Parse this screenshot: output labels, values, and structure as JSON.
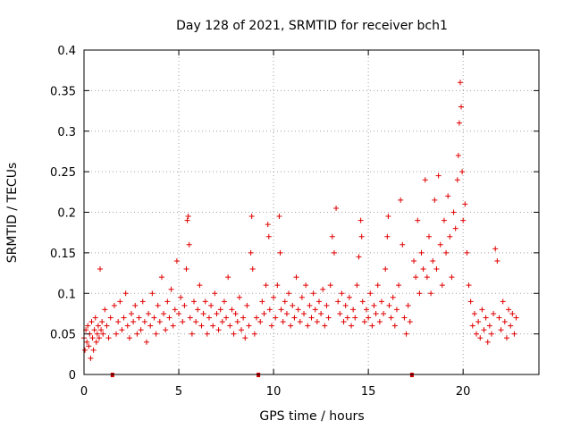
{
  "chart_data": {
    "type": "scatter",
    "title": "Day 128 of 2021, SRMTID for receiver bch1",
    "xlabel": "GPS time / hours",
    "ylabel": "SRMTID / TECUs",
    "xlim": [
      0,
      24
    ],
    "ylim": [
      0,
      0.4
    ],
    "xticks": [
      0,
      5,
      10,
      15,
      20
    ],
    "xtick_labels": [
      "0",
      "5",
      "10",
      "15",
      "20"
    ],
    "yticks": [
      0,
      0.05,
      0.1,
      0.15,
      0.2,
      0.25,
      0.3,
      0.35,
      0.4
    ],
    "ytick_labels": [
      "0",
      "0.05",
      "0.1",
      "0.15",
      "0.2",
      "0.25",
      "0.3",
      "0.35",
      "0.4"
    ],
    "grid": true,
    "marker": "+",
    "color": "#e00000",
    "gap_markers_x": [
      1.5,
      9.2,
      17.3
    ],
    "series": [
      {
        "name": "SRMTID",
        "points": [
          [
            0.0,
            0.045
          ],
          [
            0.05,
            0.03
          ],
          [
            0.1,
            0.055
          ],
          [
            0.15,
            0.04
          ],
          [
            0.2,
            0.06
          ],
          [
            0.25,
            0.035
          ],
          [
            0.3,
            0.05
          ],
          [
            0.35,
            0.02
          ],
          [
            0.4,
            0.065
          ],
          [
            0.45,
            0.045
          ],
          [
            0.5,
            0.03
          ],
          [
            0.55,
            0.055
          ],
          [
            0.6,
            0.07
          ],
          [
            0.65,
            0.04
          ],
          [
            0.7,
            0.05
          ],
          [
            0.75,
            0.06
          ],
          [
            0.8,
            0.045
          ],
          [
            0.85,
            0.13
          ],
          [
            0.9,
            0.055
          ],
          [
            0.95,
            0.065
          ],
          [
            1.0,
            0.05
          ],
          [
            1.1,
            0.08
          ],
          [
            1.2,
            0.06
          ],
          [
            1.3,
            0.045
          ],
          [
            1.4,
            0.07
          ],
          [
            1.6,
            0.085
          ],
          [
            1.7,
            0.05
          ],
          [
            1.8,
            0.065
          ],
          [
            1.9,
            0.09
          ],
          [
            2.0,
            0.055
          ],
          [
            2.1,
            0.07
          ],
          [
            2.2,
            0.1
          ],
          [
            2.3,
            0.06
          ],
          [
            2.4,
            0.045
          ],
          [
            2.5,
            0.075
          ],
          [
            2.6,
            0.065
          ],
          [
            2.7,
            0.085
          ],
          [
            2.8,
            0.05
          ],
          [
            2.9,
            0.07
          ],
          [
            3.0,
            0.055
          ],
          [
            3.1,
            0.09
          ],
          [
            3.2,
            0.065
          ],
          [
            3.3,
            0.04
          ],
          [
            3.4,
            0.075
          ],
          [
            3.5,
            0.06
          ],
          [
            3.6,
            0.1
          ],
          [
            3.7,
            0.07
          ],
          [
            3.8,
            0.05
          ],
          [
            3.9,
            0.085
          ],
          [
            4.0,
            0.065
          ],
          [
            4.1,
            0.12
          ],
          [
            4.2,
            0.075
          ],
          [
            4.3,
            0.055
          ],
          [
            4.4,
            0.09
          ],
          [
            4.5,
            0.07
          ],
          [
            4.6,
            0.105
          ],
          [
            4.7,
            0.06
          ],
          [
            4.8,
            0.08
          ],
          [
            4.9,
            0.14
          ],
          [
            5.0,
            0.075
          ],
          [
            5.1,
            0.095
          ],
          [
            5.2,
            0.065
          ],
          [
            5.3,
            0.085
          ],
          [
            5.4,
            0.13
          ],
          [
            5.45,
            0.19
          ],
          [
            5.5,
            0.195
          ],
          [
            5.55,
            0.16
          ],
          [
            5.6,
            0.07
          ],
          [
            5.7,
            0.05
          ],
          [
            5.8,
            0.09
          ],
          [
            5.9,
            0.065
          ],
          [
            6.0,
            0.08
          ],
          [
            6.1,
            0.11
          ],
          [
            6.2,
            0.06
          ],
          [
            6.3,
            0.075
          ],
          [
            6.4,
            0.09
          ],
          [
            6.5,
            0.05
          ],
          [
            6.6,
            0.07
          ],
          [
            6.7,
            0.085
          ],
          [
            6.8,
            0.06
          ],
          [
            6.9,
            0.1
          ],
          [
            7.0,
            0.075
          ],
          [
            7.1,
            0.055
          ],
          [
            7.2,
            0.08
          ],
          [
            7.3,
            0.065
          ],
          [
            7.4,
            0.09
          ],
          [
            7.5,
            0.07
          ],
          [
            7.6,
            0.12
          ],
          [
            7.7,
            0.06
          ],
          [
            7.8,
            0.08
          ],
          [
            7.9,
            0.05
          ],
          [
            8.0,
            0.075
          ],
          [
            8.1,
            0.065
          ],
          [
            8.2,
            0.095
          ],
          [
            8.3,
            0.055
          ],
          [
            8.4,
            0.07
          ],
          [
            8.5,
            0.045
          ],
          [
            8.6,
            0.085
          ],
          [
            8.7,
            0.06
          ],
          [
            8.8,
            0.15
          ],
          [
            8.85,
            0.195
          ],
          [
            8.9,
            0.13
          ],
          [
            9.0,
            0.05
          ],
          [
            9.1,
            0.07
          ],
          [
            9.3,
            0.065
          ],
          [
            9.4,
            0.09
          ],
          [
            9.5,
            0.075
          ],
          [
            9.6,
            0.11
          ],
          [
            9.7,
            0.185
          ],
          [
            9.75,
            0.17
          ],
          [
            9.8,
            0.08
          ],
          [
            9.9,
            0.06
          ],
          [
            10.0,
            0.095
          ],
          [
            10.1,
            0.07
          ],
          [
            10.2,
            0.11
          ],
          [
            10.3,
            0.195
          ],
          [
            10.35,
            0.15
          ],
          [
            10.4,
            0.08
          ],
          [
            10.5,
            0.065
          ],
          [
            10.6,
            0.09
          ],
          [
            10.7,
            0.075
          ],
          [
            10.8,
            0.1
          ],
          [
            10.9,
            0.06
          ],
          [
            11.0,
            0.085
          ],
          [
            11.1,
            0.07
          ],
          [
            11.2,
            0.12
          ],
          [
            11.3,
            0.08
          ],
          [
            11.4,
            0.065
          ],
          [
            11.5,
            0.095
          ],
          [
            11.6,
            0.075
          ],
          [
            11.7,
            0.11
          ],
          [
            11.8,
            0.06
          ],
          [
            11.9,
            0.085
          ],
          [
            12.0,
            0.07
          ],
          [
            12.1,
            0.1
          ],
          [
            12.2,
            0.08
          ],
          [
            12.3,
            0.065
          ],
          [
            12.4,
            0.09
          ],
          [
            12.5,
            0.075
          ],
          [
            12.6,
            0.105
          ],
          [
            12.7,
            0.06
          ],
          [
            12.8,
            0.085
          ],
          [
            12.9,
            0.07
          ],
          [
            13.0,
            0.11
          ],
          [
            13.1,
            0.17
          ],
          [
            13.2,
            0.15
          ],
          [
            13.3,
            0.205
          ],
          [
            13.4,
            0.09
          ],
          [
            13.5,
            0.075
          ],
          [
            13.6,
            0.1
          ],
          [
            13.7,
            0.065
          ],
          [
            13.8,
            0.085
          ],
          [
            13.9,
            0.07
          ],
          [
            14.0,
            0.095
          ],
          [
            14.1,
            0.06
          ],
          [
            14.2,
            0.08
          ],
          [
            14.3,
            0.07
          ],
          [
            14.4,
            0.11
          ],
          [
            14.5,
            0.145
          ],
          [
            14.6,
            0.19
          ],
          [
            14.65,
            0.17
          ],
          [
            14.7,
            0.09
          ],
          [
            14.8,
            0.065
          ],
          [
            14.9,
            0.08
          ],
          [
            15.0,
            0.07
          ],
          [
            15.1,
            0.1
          ],
          [
            15.2,
            0.06
          ],
          [
            15.3,
            0.085
          ],
          [
            15.4,
            0.075
          ],
          [
            15.5,
            0.11
          ],
          [
            15.6,
            0.065
          ],
          [
            15.7,
            0.09
          ],
          [
            15.8,
            0.075
          ],
          [
            15.9,
            0.13
          ],
          [
            16.0,
            0.17
          ],
          [
            16.05,
            0.195
          ],
          [
            16.1,
            0.085
          ],
          [
            16.2,
            0.07
          ],
          [
            16.3,
            0.095
          ],
          [
            16.4,
            0.06
          ],
          [
            16.5,
            0.08
          ],
          [
            16.6,
            0.11
          ],
          [
            16.7,
            0.215
          ],
          [
            16.8,
            0.16
          ],
          [
            16.9,
            0.07
          ],
          [
            17.0,
            0.05
          ],
          [
            17.1,
            0.085
          ],
          [
            17.2,
            0.065
          ],
          [
            17.4,
            0.14
          ],
          [
            17.5,
            0.12
          ],
          [
            17.6,
            0.19
          ],
          [
            17.7,
            0.1
          ],
          [
            17.8,
            0.15
          ],
          [
            17.9,
            0.13
          ],
          [
            18.0,
            0.24
          ],
          [
            18.1,
            0.12
          ],
          [
            18.2,
            0.17
          ],
          [
            18.3,
            0.1
          ],
          [
            18.4,
            0.14
          ],
          [
            18.5,
            0.215
          ],
          [
            18.6,
            0.13
          ],
          [
            18.7,
            0.245
          ],
          [
            18.8,
            0.16
          ],
          [
            18.9,
            0.11
          ],
          [
            19.0,
            0.19
          ],
          [
            19.1,
            0.15
          ],
          [
            19.2,
            0.22
          ],
          [
            19.3,
            0.17
          ],
          [
            19.4,
            0.12
          ],
          [
            19.5,
            0.2
          ],
          [
            19.6,
            0.18
          ],
          [
            19.7,
            0.24
          ],
          [
            19.75,
            0.27
          ],
          [
            19.8,
            0.31
          ],
          [
            19.85,
            0.36
          ],
          [
            19.9,
            0.33
          ],
          [
            19.95,
            0.25
          ],
          [
            20.0,
            0.19
          ],
          [
            20.1,
            0.21
          ],
          [
            20.2,
            0.15
          ],
          [
            20.3,
            0.11
          ],
          [
            20.4,
            0.09
          ],
          [
            20.5,
            0.06
          ],
          [
            20.6,
            0.075
          ],
          [
            20.7,
            0.05
          ],
          [
            20.8,
            0.065
          ],
          [
            20.9,
            0.045
          ],
          [
            21.0,
            0.08
          ],
          [
            21.1,
            0.055
          ],
          [
            21.2,
            0.07
          ],
          [
            21.3,
            0.04
          ],
          [
            21.4,
            0.06
          ],
          [
            21.5,
            0.05
          ],
          [
            21.6,
            0.075
          ],
          [
            21.7,
            0.155
          ],
          [
            21.8,
            0.14
          ],
          [
            21.9,
            0.07
          ],
          [
            22.0,
            0.055
          ],
          [
            22.1,
            0.09
          ],
          [
            22.2,
            0.065
          ],
          [
            22.3,
            0.045
          ],
          [
            22.4,
            0.08
          ],
          [
            22.5,
            0.06
          ],
          [
            22.6,
            0.075
          ],
          [
            22.7,
            0.05
          ],
          [
            22.8,
            0.07
          ]
        ]
      }
    ]
  }
}
